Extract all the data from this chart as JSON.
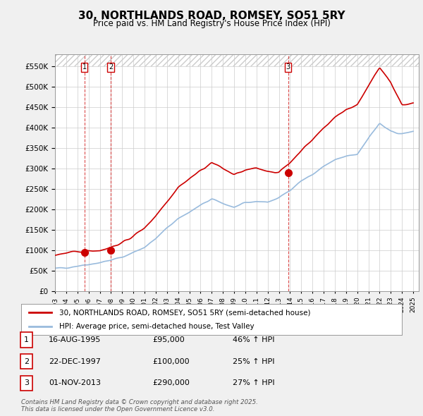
{
  "title": "30, NORTHLANDS ROAD, ROMSEY, SO51 5RY",
  "subtitle": "Price paid vs. HM Land Registry's House Price Index (HPI)",
  "property_label": "30, NORTHLANDS ROAD, ROMSEY, SO51 5RY (semi-detached house)",
  "hpi_label": "HPI: Average price, semi-detached house, Test Valley",
  "property_color": "#cc0000",
  "hpi_color": "#99bbdd",
  "sale_dates": [
    "1995-08-16",
    "1997-12-22",
    "2013-11-01"
  ],
  "sale_prices": [
    95000,
    100000,
    290000
  ],
  "sale_labels": [
    "1",
    "2",
    "3"
  ],
  "sale_info": [
    [
      "1",
      "16-AUG-1995",
      "£95,000",
      "46% ↑ HPI"
    ],
    [
      "2",
      "22-DEC-1997",
      "£100,000",
      "25% ↑ HPI"
    ],
    [
      "3",
      "01-NOV-2013",
      "£290,000",
      "27% ↑ HPI"
    ]
  ],
  "footer": "Contains HM Land Registry data © Crown copyright and database right 2025.\nThis data is licensed under the Open Government Licence v3.0.",
  "ylim": [
    0,
    580000
  ],
  "background_color": "#f0f0f0",
  "plot_bg_color": "#ffffff",
  "grid_color": "#cccccc",
  "hpi_years": [
    1993,
    1994,
    1995,
    1996,
    1997,
    1998,
    1999,
    2000,
    2001,
    2002,
    2003,
    2004,
    2005,
    2006,
    2007,
    2008,
    2009,
    2010,
    2011,
    2012,
    2013,
    2014,
    2015,
    2016,
    2017,
    2018,
    2019,
    2020,
    2021,
    2022,
    2023,
    2024,
    2025
  ],
  "hpi_values": [
    55000,
    58000,
    62000,
    66000,
    70000,
    76000,
    83000,
    95000,
    108000,
    128000,
    155000,
    178000,
    193000,
    210000,
    225000,
    215000,
    205000,
    215000,
    220000,
    218000,
    228000,
    248000,
    270000,
    285000,
    305000,
    320000,
    330000,
    335000,
    375000,
    410000,
    390000,
    385000,
    390000
  ],
  "prop_years": [
    1993,
    1994,
    1995,
    1996,
    1997,
    1998,
    1999,
    2000,
    2001,
    2002,
    2003,
    2004,
    2005,
    2006,
    2007,
    2008,
    2009,
    2010,
    2011,
    2012,
    2013,
    2014,
    2015,
    2016,
    2017,
    2018,
    2019,
    2020,
    2021,
    2022,
    2023,
    2024,
    2025
  ],
  "prop_values": [
    90000,
    93000,
    95000,
    100000,
    100000,
    108000,
    118000,
    135000,
    155000,
    185000,
    220000,
    255000,
    275000,
    295000,
    315000,
    300000,
    285000,
    295000,
    300000,
    295000,
    290000,
    315000,
    345000,
    370000,
    400000,
    425000,
    445000,
    455000,
    505000,
    545000,
    510000,
    455000,
    460000
  ]
}
